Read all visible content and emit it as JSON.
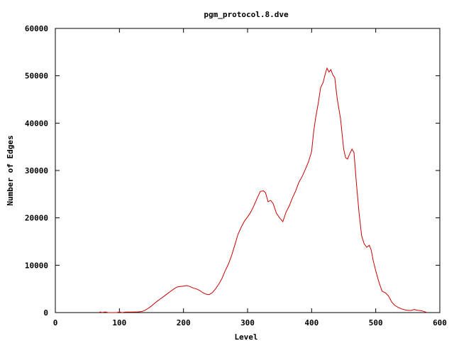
{
  "chart_data": {
    "type": "line",
    "title": "pgm_protocol.8.dve",
    "xlabel": "Level",
    "ylabel": "Number of Edges",
    "xlim": [
      0,
      600
    ],
    "ylim": [
      0,
      60000
    ],
    "x_ticks": [
      0,
      100,
      200,
      300,
      400,
      500,
      600
    ],
    "y_ticks": [
      0,
      10000,
      20000,
      30000,
      40000,
      50000,
      60000
    ],
    "grid": false,
    "legend": "none",
    "series": [
      {
        "color": "#cc0000",
        "points": [
          [
            68,
            0
          ],
          [
            70,
            150
          ],
          [
            73,
            0
          ],
          [
            78,
            150
          ],
          [
            82,
            0
          ],
          [
            96,
            0
          ],
          [
            100,
            150
          ],
          [
            104,
            0
          ],
          [
            110,
            100
          ],
          [
            120,
            120
          ],
          [
            130,
            150
          ],
          [
            136,
            250
          ],
          [
            140,
            500
          ],
          [
            145,
            900
          ],
          [
            150,
            1400
          ],
          [
            155,
            2000
          ],
          [
            160,
            2500
          ],
          [
            165,
            3000
          ],
          [
            170,
            3500
          ],
          [
            175,
            4000
          ],
          [
            180,
            4500
          ],
          [
            185,
            5000
          ],
          [
            190,
            5400
          ],
          [
            195,
            5500
          ],
          [
            200,
            5600
          ],
          [
            205,
            5700
          ],
          [
            210,
            5500
          ],
          [
            215,
            5200
          ],
          [
            220,
            5000
          ],
          [
            225,
            4700
          ],
          [
            230,
            4200
          ],
          [
            235,
            3900
          ],
          [
            240,
            3800
          ],
          [
            245,
            4200
          ],
          [
            250,
            5000
          ],
          [
            255,
            6000
          ],
          [
            260,
            7200
          ],
          [
            265,
            8800
          ],
          [
            270,
            10200
          ],
          [
            275,
            12000
          ],
          [
            280,
            14200
          ],
          [
            285,
            16500
          ],
          [
            290,
            18000
          ],
          [
            295,
            19300
          ],
          [
            300,
            20200
          ],
          [
            305,
            21200
          ],
          [
            310,
            22600
          ],
          [
            315,
            24200
          ],
          [
            320,
            25600
          ],
          [
            325,
            25700
          ],
          [
            328,
            25300
          ],
          [
            332,
            23400
          ],
          [
            336,
            23700
          ],
          [
            340,
            23000
          ],
          [
            345,
            21000
          ],
          [
            350,
            20000
          ],
          [
            355,
            19200
          ],
          [
            360,
            21200
          ],
          [
            365,
            22500
          ],
          [
            370,
            24200
          ],
          [
            375,
            25700
          ],
          [
            380,
            27500
          ],
          [
            385,
            28700
          ],
          [
            390,
            30200
          ],
          [
            395,
            31800
          ],
          [
            400,
            34000
          ],
          [
            403,
            38000
          ],
          [
            406,
            41000
          ],
          [
            410,
            44000
          ],
          [
            414,
            47500
          ],
          [
            418,
            48600
          ],
          [
            421,
            50300
          ],
          [
            424,
            51600
          ],
          [
            427,
            50800
          ],
          [
            430,
            51300
          ],
          [
            433,
            50200
          ],
          [
            436,
            49600
          ],
          [
            440,
            45000
          ],
          [
            445,
            41000
          ],
          [
            450,
            34500
          ],
          [
            453,
            32700
          ],
          [
            456,
            32400
          ],
          [
            460,
            33700
          ],
          [
            463,
            34500
          ],
          [
            466,
            33800
          ],
          [
            470,
            27000
          ],
          [
            474,
            21000
          ],
          [
            478,
            16200
          ],
          [
            482,
            14500
          ],
          [
            486,
            13800
          ],
          [
            490,
            14200
          ],
          [
            493,
            13200
          ],
          [
            496,
            11000
          ],
          [
            500,
            8800
          ],
          [
            505,
            6400
          ],
          [
            510,
            4500
          ],
          [
            515,
            4200
          ],
          [
            520,
            3500
          ],
          [
            525,
            2200
          ],
          [
            530,
            1500
          ],
          [
            535,
            1100
          ],
          [
            540,
            800
          ],
          [
            545,
            600
          ],
          [
            550,
            500
          ],
          [
            555,
            450
          ],
          [
            560,
            650
          ],
          [
            565,
            500
          ],
          [
            570,
            400
          ],
          [
            575,
            250
          ],
          [
            580,
            0
          ]
        ]
      }
    ]
  }
}
